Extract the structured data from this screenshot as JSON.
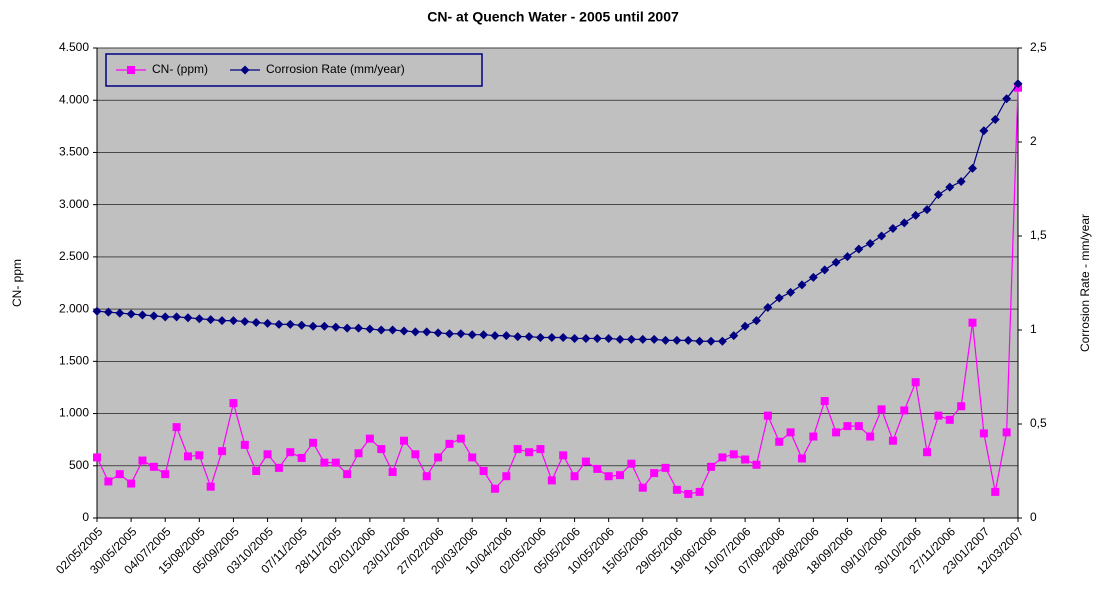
{
  "chart_data": {
    "type": "line",
    "title": "CN- at Quench Water - 2005 until 2007",
    "y_label": "CN- ppm",
    "y2_label": "Corrosion Rate - mm/year",
    "categories": [
      "02/05/2005",
      null,
      null,
      "30/05/2005",
      null,
      null,
      "04/07/2005",
      null,
      null,
      "15/08/2005",
      null,
      null,
      "05/09/2005",
      null,
      null,
      "03/10/2005",
      null,
      null,
      "07/11/2005",
      null,
      null,
      "28/11/2005",
      null,
      null,
      "02/01/2006",
      null,
      null,
      "23/01/2006",
      null,
      null,
      "27/02/2006",
      null,
      null,
      "20/03/2006",
      null,
      null,
      "10/04/2006",
      null,
      null,
      "02/05/2006",
      null,
      null,
      "05/05/2006",
      null,
      null,
      "10/05/2006",
      null,
      null,
      "15/05/2006",
      null,
      null,
      "29/05/2006",
      null,
      null,
      "19/06/2006",
      null,
      null,
      "10/07/2006",
      null,
      null,
      "07/08/2006",
      null,
      null,
      "28/08/2006",
      null,
      null,
      "18/09/2006",
      null,
      null,
      "09/10/2006",
      null,
      null,
      "30/10/2006",
      null,
      null,
      "27/11/2006",
      null,
      null,
      "23/01/2007",
      null,
      null,
      "12/03/2007"
    ],
    "series": [
      {
        "name": "CN- (ppm)",
        "color": "#ff00ff",
        "marker": "square",
        "values": [
          580,
          350,
          420,
          330,
          550,
          490,
          420,
          870,
          590,
          600,
          300,
          640,
          1100,
          700,
          450,
          610,
          480,
          630,
          575,
          720,
          530,
          530,
          420,
          620,
          760,
          660,
          440,
          740,
          610,
          400,
          580,
          710,
          760,
          580,
          450,
          280,
          400,
          660,
          630,
          660,
          360,
          600,
          400,
          540,
          470,
          400,
          410,
          520,
          290,
          430,
          480,
          270,
          230,
          250,
          490,
          580,
          610,
          560,
          510,
          980,
          730,
          820,
          570,
          780,
          1120,
          820,
          880,
          880,
          780,
          1040,
          740,
          1030,
          1300,
          630,
          980,
          940,
          1070,
          1870,
          810,
          250,
          820,
          4120
        ]
      },
      {
        "name": "Corrosion Rate (mm/year)",
        "color": "#000080",
        "marker": "diamond",
        "axis": "y2",
        "values": [
          1.1,
          1.095,
          1.09,
          1.085,
          1.08,
          1.075,
          1.07,
          1.07,
          1.065,
          1.06,
          1.055,
          1.05,
          1.05,
          1.045,
          1.04,
          1.035,
          1.03,
          1.03,
          1.025,
          1.02,
          1.02,
          1.015,
          1.01,
          1.01,
          1.005,
          1.0,
          1.0,
          0.995,
          0.99,
          0.99,
          0.985,
          0.98,
          0.98,
          0.975,
          0.975,
          0.97,
          0.97,
          0.965,
          0.965,
          0.96,
          0.96,
          0.96,
          0.955,
          0.955,
          0.955,
          0.955,
          0.95,
          0.95,
          0.95,
          0.95,
          0.945,
          0.945,
          0.945,
          0.94,
          0.94,
          0.94,
          0.97,
          1.02,
          1.05,
          1.12,
          1.17,
          1.2,
          1.24,
          1.28,
          1.32,
          1.36,
          1.39,
          1.43,
          1.46,
          1.5,
          1.54,
          1.57,
          1.61,
          1.64,
          1.72,
          1.76,
          1.79,
          1.86,
          2.06,
          2.12,
          2.23,
          2.31
        ]
      }
    ],
    "ylim": [
      0,
      4500
    ],
    "yticks": [
      0,
      500,
      {
        "value": 1000,
        "label": "1.000"
      },
      {
        "value": 1500,
        "label": "1.500"
      },
      {
        "value": 2000,
        "label": "2.000"
      },
      {
        "value": 2500,
        "label": "2.500"
      },
      {
        "value": 3000,
        "label": "3.000"
      },
      {
        "value": 3500,
        "label": "3.500"
      },
      {
        "value": 4000,
        "label": "4.000"
      },
      {
        "value": 4500,
        "label": "4.500"
      }
    ],
    "y2lim": [
      0,
      2.5
    ],
    "y2ticks": [
      0,
      {
        "value": 0.5,
        "label": "0,5"
      },
      1,
      {
        "value": 1.5,
        "label": "1,5"
      },
      2,
      {
        "value": 2.5,
        "label": "2,5"
      }
    ],
    "grid": true,
    "legend": "top-left",
    "plot_background": "#c0c0c0"
  }
}
